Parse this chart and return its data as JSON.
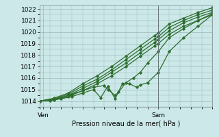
{
  "background_color": "#cce8e8",
  "grid_color": "#99bbbb",
  "line_color": "#2d6e2d",
  "xlabel": "Pression niveau de la mer( hPa )",
  "xlim": [
    0,
    48
  ],
  "ylim": [
    1013.5,
    1022.3
  ],
  "yticks": [
    1014,
    1015,
    1016,
    1017,
    1018,
    1019,
    1020,
    1021,
    1022
  ],
  "xtick_labels": [
    "Ven",
    "Sam"
  ],
  "xtick_positions": [
    1,
    33
  ],
  "vline_x": 33,
  "smooth_lines": [
    [
      0,
      1014.0,
      4,
      1014.1,
      8,
      1014.4,
      12,
      1014.9,
      16,
      1015.5,
      20,
      1016.2,
      24,
      1017.0,
      28,
      1017.9,
      32,
      1018.8,
      33,
      1019.0,
      36,
      1019.8,
      40,
      1020.5,
      44,
      1021.0,
      48,
      1021.5
    ],
    [
      0,
      1014.0,
      4,
      1014.15,
      8,
      1014.5,
      12,
      1015.1,
      16,
      1015.7,
      20,
      1016.5,
      24,
      1017.3,
      28,
      1018.2,
      32,
      1019.1,
      33,
      1019.35,
      36,
      1020.1,
      40,
      1020.8,
      44,
      1021.3,
      48,
      1021.7
    ],
    [
      0,
      1014.0,
      4,
      1014.2,
      8,
      1014.6,
      12,
      1015.3,
      16,
      1015.9,
      20,
      1016.7,
      24,
      1017.6,
      28,
      1018.5,
      32,
      1019.4,
      33,
      1019.6,
      36,
      1020.4,
      40,
      1021.0,
      44,
      1021.5,
      48,
      1021.9
    ],
    [
      0,
      1014.0,
      4,
      1014.25,
      8,
      1014.7,
      12,
      1015.5,
      16,
      1016.2,
      20,
      1017.0,
      24,
      1017.9,
      28,
      1018.8,
      32,
      1019.7,
      33,
      1019.9,
      36,
      1020.7,
      40,
      1021.2,
      44,
      1021.7,
      48,
      1022.1
    ]
  ],
  "zigzag_line1": [
    0,
    1014.0,
    3,
    1014.1,
    6,
    1014.3,
    9,
    1014.6,
    12,
    1014.9,
    15,
    1015.2,
    18,
    1015.35,
    19,
    1015.0,
    21,
    1014.5,
    22,
    1014.8,
    24,
    1015.6,
    26,
    1016.0,
    28,
    1016.5,
    30,
    1017.3,
    33,
    1018.3,
    36,
    1019.5,
    40,
    1020.3,
    44,
    1021.0,
    48,
    1021.6
  ],
  "zigzag_line2": [
    0,
    1014.0,
    3,
    1014.05,
    6,
    1014.2,
    9,
    1014.4,
    12,
    1014.7,
    15,
    1015.0,
    17,
    1014.3,
    19,
    1015.3,
    21,
    1014.2,
    23,
    1015.5,
    25,
    1015.5,
    27,
    1015.2,
    28,
    1015.4,
    30,
    1015.6,
    33,
    1016.5,
    36,
    1018.3,
    40,
    1019.5,
    44,
    1020.5,
    48,
    1021.5
  ]
}
